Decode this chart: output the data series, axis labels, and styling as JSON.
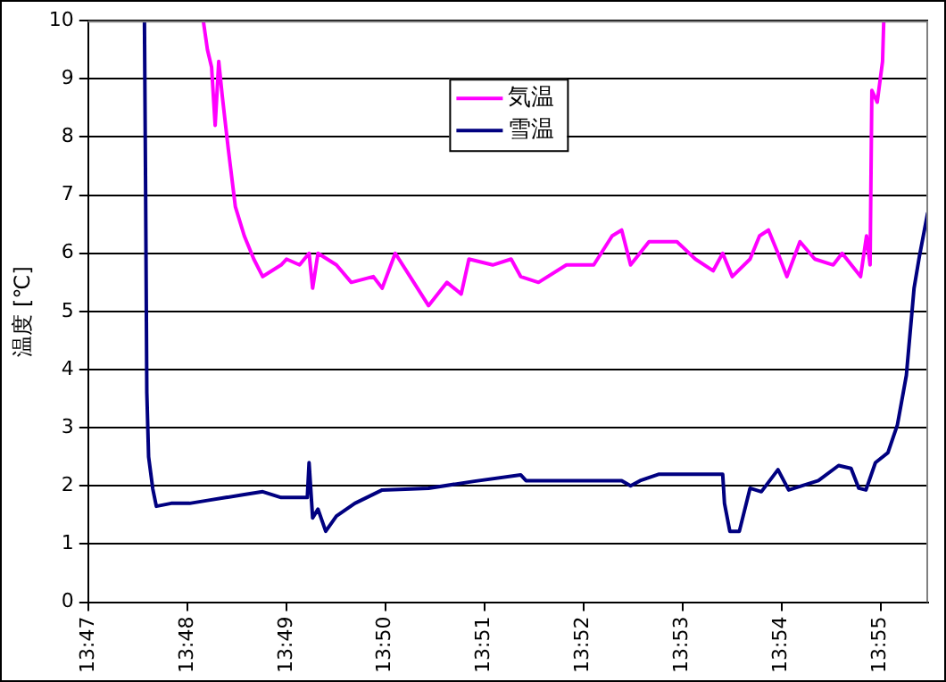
{
  "chart_data": {
    "type": "line",
    "ylabel": "温度 [℃]",
    "xlim": [
      13.78333,
      13.92467
    ],
    "xticks": [
      {
        "value": 13.78333,
        "label": "13:47"
      },
      {
        "value": 13.8,
        "label": "13:48"
      },
      {
        "value": 13.81667,
        "label": "13:49"
      },
      {
        "value": 13.83333,
        "label": "13:50"
      },
      {
        "value": 13.85,
        "label": "13:51"
      },
      {
        "value": 13.86667,
        "label": "13:52"
      },
      {
        "value": 13.88333,
        "label": "13:53"
      },
      {
        "value": 13.9,
        "label": "13:54"
      },
      {
        "value": 13.91667,
        "label": "13:55"
      }
    ],
    "ylim": [
      0,
      10
    ],
    "yticks": [
      0,
      1,
      2,
      3,
      4,
      5,
      6,
      7,
      8,
      9,
      10
    ],
    "grid": "y",
    "legend": "top",
    "marker": "none",
    "line_style": "solid",
    "series": [
      {
        "name": "気温",
        "color": "#ff00ff",
        "x": [
          13.8027,
          13.8034,
          13.8041,
          13.8047,
          13.8053,
          13.8059,
          13.8069,
          13.8081,
          13.8096,
          13.8112,
          13.8127,
          13.8158,
          13.8167,
          13.8189,
          13.8205,
          13.8211,
          13.822,
          13.8251,
          13.8276,
          13.8313,
          13.8328,
          13.835,
          13.8375,
          13.8406,
          13.8437,
          13.8461,
          13.8474,
          13.8514,
          13.8545,
          13.8561,
          13.8591,
          13.8638,
          13.8684,
          13.8715,
          13.8731,
          13.8746,
          13.8777,
          13.8824,
          13.8855,
          13.8885,
          13.8901,
          13.8917,
          13.8947,
          13.8963,
          13.8978,
          13.8994,
          13.9009,
          13.9031,
          13.9056,
          13.9087,
          13.9102,
          13.9133,
          13.9143,
          13.9149,
          13.9152,
          13.9161,
          13.917,
          13.9172
        ],
        "values": [
          10,
          9.5,
          9.2,
          8.2,
          9.3,
          8.7,
          7.8,
          6.8,
          6.3,
          5.9,
          5.6,
          5.8,
          5.9,
          5.8,
          6.0,
          5.4,
          6.0,
          5.8,
          5.5,
          5.6,
          5.4,
          6.0,
          5.6,
          5.1,
          5.5,
          5.3,
          5.9,
          5.8,
          5.9,
          5.6,
          5.5,
          5.8,
          5.8,
          6.3,
          6.4,
          5.8,
          6.2,
          6.2,
          5.9,
          5.7,
          6.0,
          5.6,
          5.9,
          6.3,
          6.4,
          6.0,
          5.6,
          6.2,
          5.9,
          5.8,
          6.0,
          5.6,
          6.3,
          5.8,
          8.8,
          8.6,
          9.3,
          10
        ]
      },
      {
        "name": "雪温",
        "color": "#000080",
        "x": [
          13.7928,
          13.793,
          13.7932,
          13.7935,
          13.7942,
          13.7948,
          13.7973,
          13.8004,
          13.8034,
          13.8065,
          13.8096,
          13.8127,
          13.8158,
          13.8202,
          13.8205,
          13.8211,
          13.822,
          13.8233,
          13.8251,
          13.8282,
          13.8328,
          13.8406,
          13.8483,
          13.8561,
          13.857,
          13.8653,
          13.8731,
          13.8746,
          13.8762,
          13.8793,
          13.8901,
          13.8904,
          13.8913,
          13.8929,
          13.8947,
          13.8966,
          13.8994,
          13.9012,
          13.9062,
          13.9096,
          13.9117,
          13.913,
          13.9142,
          13.9158,
          13.9179,
          13.9195,
          13.921,
          13.9223,
          13.9232,
          13.9246
        ],
        "values": [
          10,
          7.0,
          3.6,
          2.5,
          1.95,
          1.65,
          1.7,
          1.7,
          1.75,
          1.8,
          1.85,
          1.9,
          1.8,
          1.8,
          2.4,
          1.45,
          1.6,
          1.22,
          1.48,
          1.7,
          1.93,
          1.96,
          2.08,
          2.19,
          2.09,
          2.09,
          2.09,
          2.0,
          2.09,
          2.2,
          2.2,
          1.7,
          1.22,
          1.22,
          1.96,
          1.9,
          2.28,
          1.93,
          2.09,
          2.35,
          2.3,
          1.96,
          1.93,
          2.4,
          2.57,
          3.05,
          3.9,
          5.4,
          5.95,
          6.7
        ]
      }
    ]
  }
}
